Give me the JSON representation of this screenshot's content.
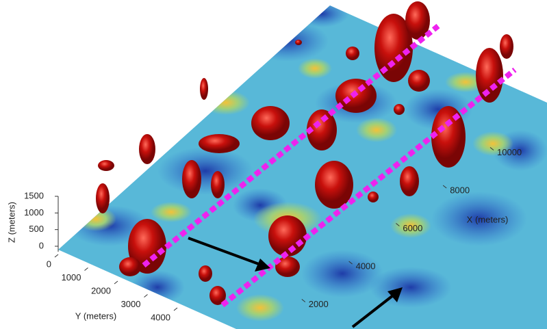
{
  "chart_data": {
    "type": "surface3d",
    "xlabel": "X (meters)",
    "ylabel": "Y (meters)",
    "zlabel": "Z (meters)",
    "xlim": [
      0,
      11500
    ],
    "xticks": [
      2000,
      4000,
      6000,
      8000,
      10000
    ],
    "ylim": [
      0,
      4800
    ],
    "yticks": [
      0,
      1000,
      2000,
      3000,
      4000
    ],
    "zlim": [
      0,
      1500
    ],
    "zticks": [
      0,
      500,
      1000,
      1500
    ]
  }
}
